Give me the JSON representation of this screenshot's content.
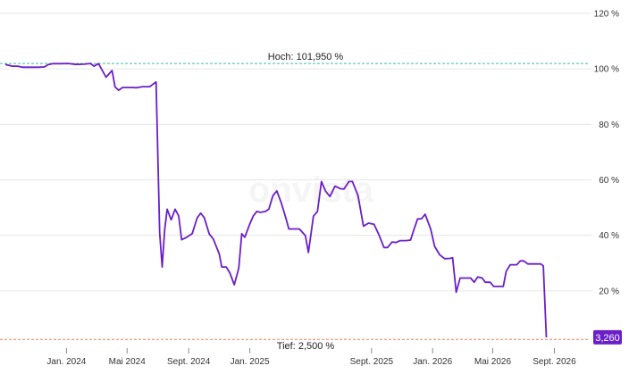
{
  "chart_data": {
    "type": "line",
    "watermark": "onvista",
    "y_unit": "%",
    "ylim": [
      0,
      120
    ],
    "y_ticks": [
      {
        "value": 120,
        "label": "120 %"
      },
      {
        "value": 100,
        "label": "100 %"
      },
      {
        "value": 80,
        "label": "80 %"
      },
      {
        "value": 60,
        "label": "60 %"
      },
      {
        "value": 40,
        "label": "40 %"
      },
      {
        "value": 20,
        "label": "20 %"
      }
    ],
    "xlim": [
      "2023-09-01",
      "2026-11-07"
    ],
    "x_ticks": [
      {
        "date": "2024-01-01",
        "label": "Jan. 2024"
      },
      {
        "date": "2024-05-01",
        "label": "Mai 2024"
      },
      {
        "date": "2024-09-01",
        "label": "Sept. 2024"
      },
      {
        "date": "2025-01-01",
        "label": "Jan. 2025"
      },
      {
        "date": "2025-09-01",
        "label": "Sept. 2025"
      },
      {
        "date": "2026-01-01",
        "label": "Jan. 2026"
      },
      {
        "date": "2026-05-01",
        "label": "Mai 2026"
      },
      {
        "date": "2026-09-01",
        "label": "Sept. 2026"
      }
    ],
    "grid": true,
    "reference_lines": [
      {
        "value": 101.95,
        "label": "Hoch: 101,950 %",
        "color": "#3cbfa0"
      },
      {
        "value": 2.5,
        "label": "Tief: 2,500 %",
        "color": "#e8845c"
      }
    ],
    "last_value": {
      "value": 3.26,
      "label": "3,260"
    },
    "series": [
      {
        "color": "#6a1fc8",
        "points": [
          [
            "2023-09-01",
            101.6
          ],
          [
            "2023-09-15",
            101.0
          ],
          [
            "2023-09-25",
            101.0
          ],
          [
            "2023-10-05",
            100.6
          ],
          [
            "2023-10-20",
            100.6
          ],
          [
            "2023-11-05",
            100.6
          ],
          [
            "2023-11-18",
            100.7
          ],
          [
            "2023-11-25",
            101.5
          ],
          [
            "2023-12-05",
            101.9
          ],
          [
            "2023-12-20",
            101.9
          ],
          [
            "2024-01-05",
            101.95
          ],
          [
            "2024-01-20",
            101.6
          ],
          [
            "2024-02-05",
            101.7
          ],
          [
            "2024-02-18",
            101.95
          ],
          [
            "2024-02-25",
            101.0
          ],
          [
            "2024-03-05",
            101.9
          ],
          [
            "2024-03-20",
            97.0
          ],
          [
            "2024-04-01",
            99.4
          ],
          [
            "2024-04-07",
            93.5
          ],
          [
            "2024-04-14",
            92.3
          ],
          [
            "2024-04-22",
            93.3
          ],
          [
            "2024-05-10",
            93.3
          ],
          [
            "2024-05-20",
            93.2
          ],
          [
            "2024-06-01",
            93.6
          ],
          [
            "2024-06-15",
            93.6
          ],
          [
            "2024-06-28",
            95.3
          ],
          [
            "2024-07-05",
            41.0
          ],
          [
            "2024-07-10",
            28.6
          ],
          [
            "2024-07-15",
            42.0
          ],
          [
            "2024-07-20",
            49.4
          ],
          [
            "2024-07-28",
            45.6
          ],
          [
            "2024-08-05",
            49.4
          ],
          [
            "2024-08-12",
            47.0
          ],
          [
            "2024-08-18",
            38.4
          ],
          [
            "2024-08-28",
            39.3
          ],
          [
            "2024-09-08",
            40.6
          ],
          [
            "2024-09-18",
            46.3
          ],
          [
            "2024-09-25",
            48.0
          ],
          [
            "2024-10-02",
            46.4
          ],
          [
            "2024-10-12",
            40.5
          ],
          [
            "2024-10-20",
            38.7
          ],
          [
            "2024-11-01",
            33.3
          ],
          [
            "2024-11-06",
            28.6
          ],
          [
            "2024-11-15",
            28.6
          ],
          [
            "2024-11-22",
            26.5
          ],
          [
            "2024-12-01",
            22.2
          ],
          [
            "2024-12-10",
            28.1
          ],
          [
            "2024-12-16",
            40.6
          ],
          [
            "2024-12-22",
            39.3
          ],
          [
            "2025-01-01",
            44.1
          ],
          [
            "2025-01-08",
            47.0
          ],
          [
            "2025-01-15",
            48.6
          ],
          [
            "2025-01-22",
            48.3
          ],
          [
            "2025-02-01",
            48.6
          ],
          [
            "2025-02-08",
            49.4
          ],
          [
            "2025-02-16",
            54.3
          ],
          [
            "2025-02-24",
            56.0
          ],
          [
            "2025-03-05",
            51.6
          ],
          [
            "2025-03-14",
            46.3
          ],
          [
            "2025-03-20",
            42.3
          ],
          [
            "2025-04-01",
            42.3
          ],
          [
            "2025-04-10",
            42.3
          ],
          [
            "2025-04-22",
            39.9
          ],
          [
            "2025-04-28",
            33.8
          ],
          [
            "2025-05-08",
            46.9
          ],
          [
            "2025-05-16",
            48.6
          ],
          [
            "2025-05-24",
            59.4
          ],
          [
            "2025-06-01",
            56.0
          ],
          [
            "2025-06-10",
            54.0
          ],
          [
            "2025-06-20",
            57.7
          ],
          [
            "2025-07-01",
            56.8
          ],
          [
            "2025-07-08",
            56.7
          ],
          [
            "2025-07-18",
            59.4
          ],
          [
            "2025-07-25",
            59.4
          ],
          [
            "2025-08-05",
            54.3
          ],
          [
            "2025-08-16",
            43.3
          ],
          [
            "2025-08-26",
            44.4
          ],
          [
            "2025-09-06",
            44.0
          ],
          [
            "2025-09-15",
            40.5
          ],
          [
            "2025-09-26",
            35.6
          ],
          [
            "2025-10-03",
            35.6
          ],
          [
            "2025-10-12",
            37.6
          ],
          [
            "2025-10-20",
            37.4
          ],
          [
            "2025-10-28",
            38.1
          ],
          [
            "2025-11-08",
            38.1
          ],
          [
            "2025-11-18",
            38.3
          ],
          [
            "2025-11-25",
            42.3
          ],
          [
            "2025-12-02",
            45.9
          ],
          [
            "2025-12-10",
            46.0
          ],
          [
            "2025-12-17",
            47.6
          ],
          [
            "2025-12-28",
            42.3
          ],
          [
            "2026-01-05",
            36.0
          ],
          [
            "2026-01-15",
            33.0
          ],
          [
            "2026-01-25",
            31.6
          ],
          [
            "2026-02-05",
            31.7
          ],
          [
            "2026-02-10",
            31.9
          ],
          [
            "2026-02-17",
            19.5
          ],
          [
            "2026-02-25",
            24.6
          ],
          [
            "2026-03-08",
            24.6
          ],
          [
            "2026-03-18",
            24.6
          ],
          [
            "2026-03-25",
            23.1
          ],
          [
            "2026-04-01",
            25.0
          ],
          [
            "2026-04-10",
            24.6
          ],
          [
            "2026-04-16",
            23.1
          ],
          [
            "2026-04-26",
            23.1
          ],
          [
            "2026-05-03",
            21.6
          ],
          [
            "2026-05-22",
            21.6
          ],
          [
            "2026-05-28",
            27.1
          ],
          [
            "2026-06-05",
            29.4
          ],
          [
            "2026-06-18",
            29.4
          ],
          [
            "2026-06-25",
            30.8
          ],
          [
            "2026-07-02",
            30.8
          ],
          [
            "2026-07-10",
            29.7
          ],
          [
            "2026-07-22",
            29.7
          ],
          [
            "2026-08-05",
            29.7
          ],
          [
            "2026-08-10",
            29.0
          ],
          [
            "2026-08-16",
            3.26
          ]
        ]
      }
    ]
  }
}
